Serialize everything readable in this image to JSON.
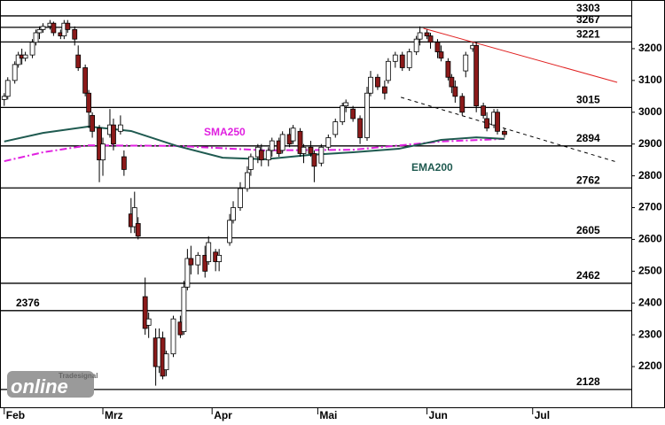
{
  "chart_data": {
    "type": "candlestick",
    "xlim": [
      -1.2,
      178
    ],
    "ylim": [
      2072,
      3353
    ],
    "xticks": [
      {
        "value": 0,
        "label": "Feb"
      },
      {
        "value": 28,
        "label": "Mrz"
      },
      {
        "value": 59,
        "label": "Apr"
      },
      {
        "value": 89,
        "label": "Mai"
      },
      {
        "value": 120,
        "label": "Jun"
      },
      {
        "value": 150,
        "label": "Jul"
      }
    ],
    "yticks": [
      2200,
      2300,
      2400,
      2500,
      2600,
      2700,
      2800,
      2900,
      3000,
      3100,
      3200
    ],
    "up_color": "#ffffff",
    "down_color": "#8b1a1a",
    "x": [
      0,
      1,
      3,
      4,
      5,
      6,
      8,
      9,
      10,
      11,
      13,
      14,
      16,
      17,
      18,
      20,
      21,
      23,
      24,
      25,
      27,
      28,
      30,
      31,
      33,
      34,
      36,
      37,
      38,
      40,
      41,
      43,
      44,
      45,
      46,
      48,
      50,
      51,
      52,
      53,
      55,
      57,
      58,
      60,
      61,
      64,
      65,
      67,
      69,
      70,
      72,
      73,
      75,
      76,
      78,
      79,
      81,
      82,
      84,
      85,
      87,
      88,
      90,
      92,
      94,
      96,
      97,
      99,
      101,
      103,
      104,
      106,
      108,
      109,
      111,
      113,
      115,
      117,
      118,
      120,
      121,
      123,
      124,
      126,
      127,
      128,
      130,
      131,
      133,
      134,
      136,
      137,
      139,
      140,
      142
    ],
    "open": [
      3040,
      3050,
      3100,
      3150,
      3180,
      3170,
      3180,
      3220,
      3250,
      3260,
      3270,
      3280,
      3250,
      3240,
      3280,
      3260,
      3180,
      3140,
      3060,
      2990,
      2950,
      2850,
      2930,
      2960,
      2940,
      2860,
      2680,
      2640,
      2650,
      2420,
      2330,
      2290,
      2200,
      2290,
      2190,
      2240,
      2340,
      2310,
      2450,
      2540,
      2520,
      2550,
      2530,
      2560,
      2530,
      2590,
      2660,
      2700,
      2760,
      2820,
      2860,
      2880,
      2850,
      2880,
      2910,
      2880,
      2930,
      2910,
      2940,
      2870,
      2890,
      2870,
      2840,
      2890,
      2930,
      2970,
      3020,
      3010,
      2980,
      2920,
      3060,
      3110,
      3080,
      3100,
      3160,
      3180,
      3140,
      3190,
      3230,
      3250,
      3240,
      3220,
      3190,
      3160,
      3110,
      3080,
      3050,
      3130,
      3200,
      3210,
      3020,
      2980,
      2960,
      3000,
      2940
    ],
    "high": [
      3060,
      3110,
      3160,
      3190,
      3200,
      3190,
      3230,
      3260,
      3270,
      3280,
      3290,
      3285,
      3260,
      3290,
      3290,
      3270,
      3210,
      3150,
      3070,
      3000,
      2960,
      2920,
      3010,
      2980,
      2990,
      2880,
      2730,
      2750,
      2670,
      2480,
      2370,
      2320,
      2320,
      2310,
      2250,
      2360,
      2360,
      2470,
      2570,
      2580,
      2560,
      2580,
      2610,
      2570,
      2570,
      2680,
      2720,
      2780,
      2830,
      2870,
      2900,
      2900,
      2890,
      2920,
      2920,
      2940,
      2950,
      2960,
      2950,
      2900,
      2910,
      2880,
      2900,
      2930,
      2980,
      3030,
      3040,
      3020,
      2990,
      3080,
      3130,
      3120,
      3100,
      3170,
      3190,
      3190,
      3200,
      3240,
      3270,
      3260,
      3250,
      3230,
      3210,
      3170,
      3120,
      3100,
      3060,
      3190,
      3220,
      3220,
      3030,
      3000,
      3010,
      3010,
      2950
    ],
    "low": [
      3020,
      3040,
      3090,
      3140,
      3150,
      3160,
      3170,
      3210,
      3230,
      3250,
      3260,
      3240,
      3230,
      3230,
      3250,
      3210,
      3130,
      3050,
      2950,
      2920,
      2780,
      2800,
      2920,
      2880,
      2930,
      2800,
      2620,
      2620,
      2600,
      2300,
      2290,
      2140,
      2180,
      2160,
      2170,
      2230,
      2290,
      2300,
      2440,
      2490,
      2490,
      2480,
      2520,
      2500,
      2500,
      2580,
      2650,
      2690,
      2750,
      2800,
      2840,
      2830,
      2830,
      2860,
      2860,
      2870,
      2890,
      2900,
      2860,
      2840,
      2860,
      2780,
      2830,
      2880,
      2920,
      2960,
      3000,
      2970,
      2900,
      2910,
      3050,
      3070,
      3040,
      3090,
      3140,
      3130,
      3130,
      3180,
      3210,
      3230,
      3200,
      3170,
      3160,
      3100,
      3060,
      3030,
      2990,
      3110,
      3190,
      3000,
      2980,
      2940,
      2950,
      2930,
      2920
    ],
    "close": [
      3050,
      3100,
      3150,
      3180,
      3170,
      3180,
      3220,
      3250,
      3260,
      3270,
      3280,
      3250,
      3240,
      3280,
      3260,
      3230,
      3140,
      3060,
      3000,
      2940,
      2850,
      2900,
      2960,
      2900,
      2960,
      2820,
      2640,
      2700,
      2610,
      2320,
      2350,
      2200,
      2290,
      2170,
      2240,
      2350,
      2300,
      2450,
      2540,
      2520,
      2550,
      2500,
      2590,
      2530,
      2550,
      2660,
      2700,
      2760,
      2810,
      2860,
      2890,
      2850,
      2880,
      2910,
      2870,
      2930,
      2900,
      2950,
      2870,
      2890,
      2870,
      2830,
      2890,
      2920,
      2970,
      3020,
      3030,
      2980,
      2920,
      3060,
      3110,
      3080,
      3060,
      3160,
      3180,
      3140,
      3190,
      3230,
      3250,
      3240,
      3220,
      3190,
      3170,
      3110,
      3080,
      3050,
      3000,
      3180,
      3210,
      3020,
      2990,
      2950,
      3000,
      2940,
      2930
    ],
    "lines": [
      {
        "name": "SMA250",
        "color": "#e020e0",
        "x": [
          0,
          11,
          24,
          49,
          74,
          99,
          124,
          142
        ],
        "values": [
          2846,
          2874,
          2896,
          2894,
          2880,
          2882,
          2908,
          2916
        ]
      },
      {
        "name": "EMA200",
        "color": "#1f5a50",
        "x": [
          0,
          11,
          24,
          36,
          49,
          62,
          74,
          87,
          99,
          112,
          124,
          134,
          142
        ],
        "values": [
          2908,
          2935,
          2955,
          2941,
          2894,
          2857,
          2852,
          2866,
          2874,
          2885,
          2913,
          2921,
          2916
        ]
      }
    ],
    "trendlines": [
      {
        "color": "#e02020",
        "dashed": false,
        "x": [
          119,
          174
        ],
        "values": [
          3264,
          3094
        ]
      },
      {
        "color": "#000000",
        "dashed": true,
        "x": [
          112.6,
          174
        ],
        "values": [
          3047,
          2843
        ]
      }
    ],
    "levels": [
      3303,
      3267,
      3221,
      3015,
      2894,
      2762,
      2605,
      2462,
      2376,
      2128
    ],
    "logo": {
      "brand": "Tradesignal",
      "name": "online"
    }
  }
}
